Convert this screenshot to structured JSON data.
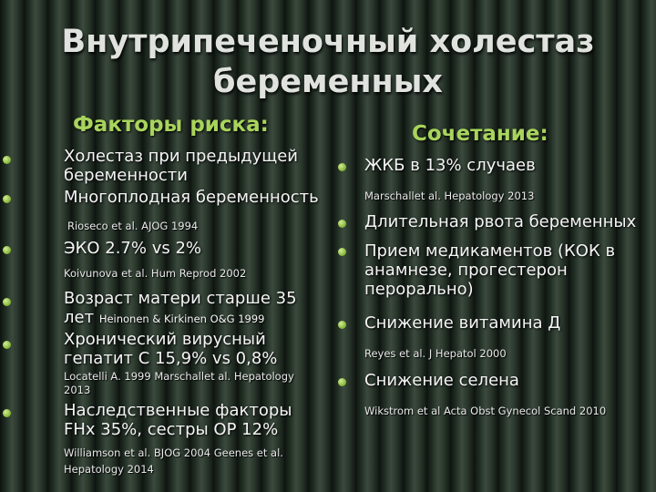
{
  "title": {
    "line1": "Внутрипеченочный холестаз",
    "line2": "беременных"
  },
  "left": {
    "heading": "Факторы риска:",
    "items": [
      {
        "text1": "Холестаз при предыдущей",
        "text2": "беременности"
      },
      {
        "text1": "Многоплодная беременность"
      },
      {
        "ref": "Rioseco et al. AJOG 1994"
      },
      {
        "text1": "ЭКО 2.7% vs 2%"
      },
      {
        "ref": "Koivunova et al. Hum Reprod 2002"
      },
      {
        "text1": "Возраст матери старше 35",
        "text2": "лет",
        "inline_ref": "Heinonen & Kirkinen O&G 1999"
      },
      {
        "text1": "Хронический вирусный",
        "text2": "гепатит С 15,9% vs 0,8%"
      },
      {
        "ref1": "Locatelli A. 1999 Marschallet al. Hepatology",
        "ref2": "2013"
      },
      {
        "text1": "Наследственные факторы",
        "text2": "FHx 35%, сестры OP 12%"
      },
      {
        "ref1": "Williamson et al. BJOG 2004 Geenes et al.",
        "ref2": "Hepatology 2014"
      }
    ]
  },
  "right": {
    "heading": "Сочетание:",
    "items": [
      {
        "text1": "ЖКБ в 13% случаев"
      },
      {
        "ref": "Marschallet al. Hepatology 2013"
      },
      {
        "text1": "Длительная рвота беременных"
      },
      {
        "text1": "Прием медикаментов (КОК в",
        "text2": "анамнезе, прогестерон",
        "text3": "перорально)"
      },
      {
        "text1": "Снижение витамина Д"
      },
      {
        "ref": "Reyes et al. J Hepatol 2000"
      },
      {
        "text1": "Снижение селена"
      },
      {
        "ref": "Wikstrom et al Acta Obst Gynecol Scand 2010"
      }
    ]
  },
  "colors": {
    "heading": "#a8d45c",
    "bullet": "#8cbc3c",
    "title": "#e0e2de"
  }
}
